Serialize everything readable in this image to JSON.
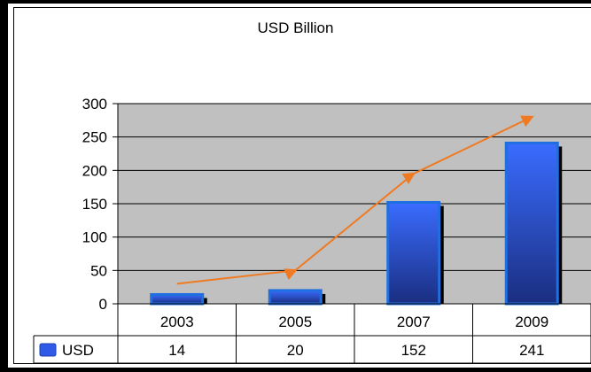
{
  "chart_data": {
    "type": "bar",
    "title": "USD Billion",
    "categories": [
      "2003",
      "2005",
      "2007",
      "2009"
    ],
    "series": [
      {
        "name": "USD",
        "values": [
          14,
          20,
          152,
          241
        ],
        "color": "#2f5ae8"
      }
    ],
    "trend_line": {
      "values": [
        30,
        50,
        195,
        280
      ],
      "color": "#f07a22"
    },
    "y_ticks": [
      "0",
      "50",
      "100",
      "150",
      "200",
      "250",
      "300"
    ],
    "ylim": [
      0,
      300
    ],
    "grid": true,
    "plot_background": "#c0c0c0",
    "legend_placement": "data-table-left"
  }
}
